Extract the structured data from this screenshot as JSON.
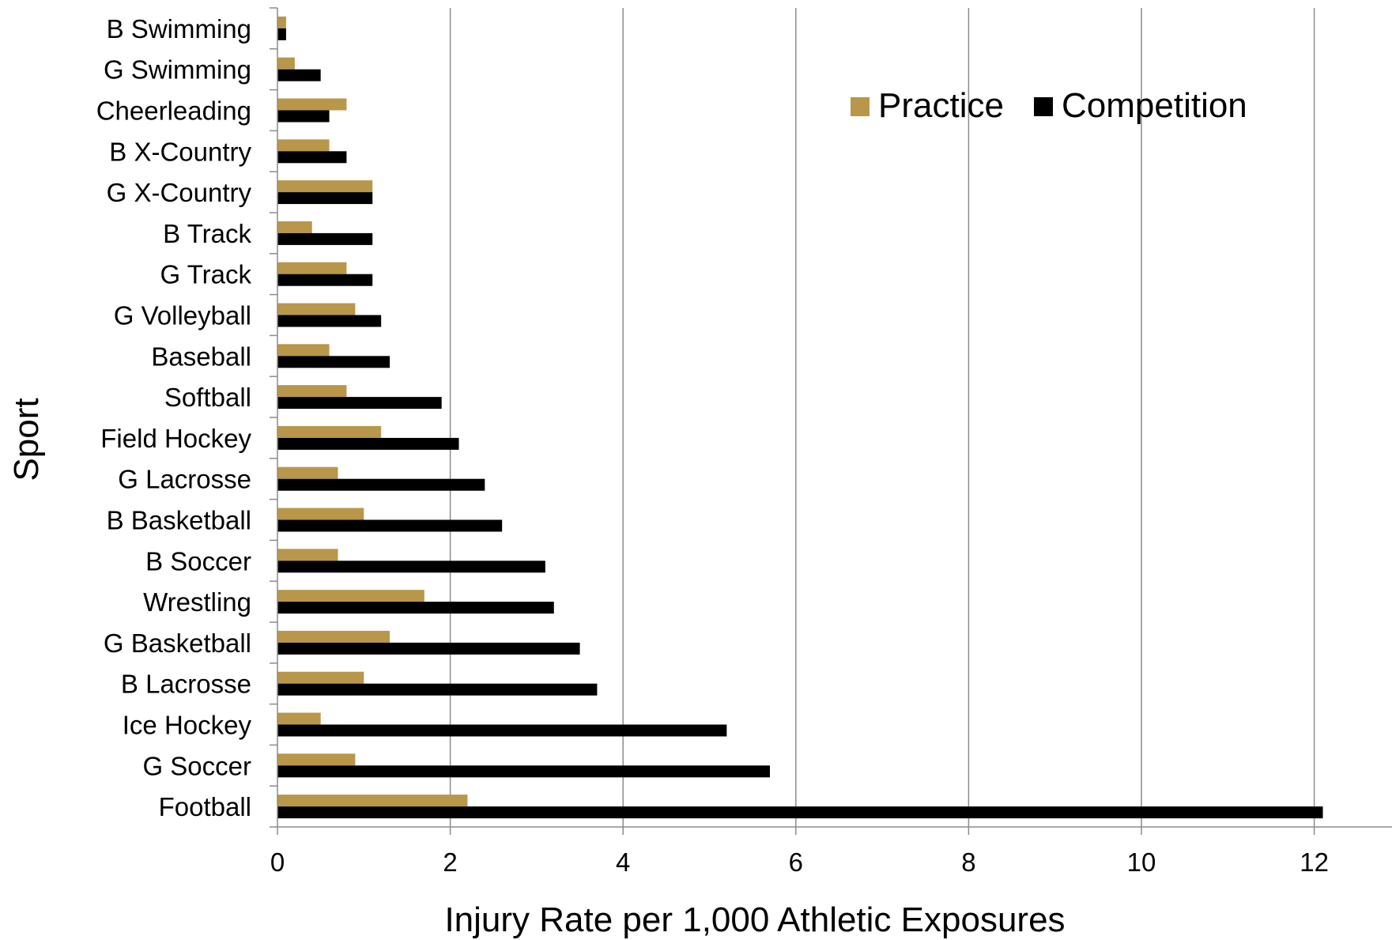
{
  "chart_data": {
    "type": "bar",
    "orientation": "horizontal",
    "categories": [
      "B Swimming",
      "G Swimming",
      "Cheerleading",
      "B X-Country",
      "G X-Country",
      "B Track",
      "G Track",
      "G Volleyball",
      "Baseball",
      "Softball",
      "Field Hockey",
      "G Lacrosse",
      "B Basketball",
      "B Soccer",
      "Wrestling",
      "G Basketball",
      "B Lacrosse",
      "Ice Hockey",
      "G Soccer",
      "Football"
    ],
    "series": [
      {
        "name": "Practice",
        "color": "#b8974a",
        "values": [
          0.1,
          0.2,
          0.8,
          0.6,
          1.1,
          0.4,
          0.8,
          0.9,
          0.6,
          0.8,
          1.2,
          0.7,
          1.0,
          0.7,
          1.7,
          1.3,
          1.0,
          0.5,
          0.9,
          2.2
        ]
      },
      {
        "name": "Competition",
        "color": "#000000",
        "values": [
          0.1,
          0.5,
          0.6,
          0.8,
          1.1,
          1.1,
          1.1,
          1.2,
          1.3,
          1.9,
          2.1,
          2.4,
          2.6,
          3.1,
          3.2,
          3.5,
          3.7,
          5.2,
          5.7,
          12.1
        ]
      }
    ],
    "xlabel": "Injury Rate per 1,000 Athletic Exposures",
    "ylabel": "Sport",
    "xlim": [
      0,
      12.6
    ],
    "xticks": [
      0,
      2,
      4,
      6,
      8,
      10,
      12
    ],
    "grid": "vertical",
    "legend": "top-right"
  }
}
